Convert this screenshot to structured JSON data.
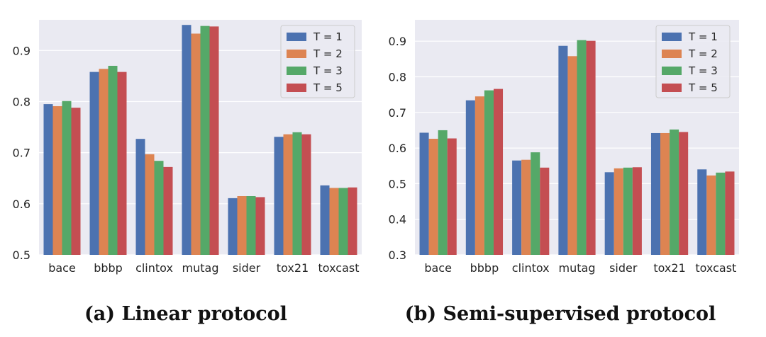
{
  "colors": {
    "background": "#eaeaf2",
    "grid": "#ffffff",
    "series": [
      "#4c72b0",
      "#dd8452",
      "#55a868",
      "#c44e52"
    ]
  },
  "chart_data": [
    {
      "type": "bar",
      "caption": "(a) Linear protocol",
      "categories": [
        "bace",
        "bbbp",
        "clintox",
        "mutag",
        "sider",
        "tox21",
        "toxcast"
      ],
      "ylim": [
        0.5,
        0.96
      ],
      "yticks": [
        "0.5",
        "0.6",
        "0.7",
        "0.8",
        "0.9"
      ],
      "grid": true,
      "legend_position": "top-right",
      "series": [
        {
          "name": "T = 1",
          "values": [
            0.795,
            0.858,
            0.727,
            0.95,
            0.611,
            0.731,
            0.636
          ]
        },
        {
          "name": "T = 2",
          "values": [
            0.791,
            0.864,
            0.697,
            0.933,
            0.615,
            0.736,
            0.631
          ]
        },
        {
          "name": "T = 3",
          "values": [
            0.801,
            0.87,
            0.684,
            0.948,
            0.615,
            0.74,
            0.631
          ]
        },
        {
          "name": "T = 5",
          "values": [
            0.788,
            0.858,
            0.672,
            0.947,
            0.613,
            0.736,
            0.632
          ]
        }
      ]
    },
    {
      "type": "bar",
      "caption": "(b) Semi-supervised protocol",
      "categories": [
        "bace",
        "bbbp",
        "clintox",
        "mutag",
        "sider",
        "tox21",
        "toxcast"
      ],
      "ylim": [
        0.3,
        0.96
      ],
      "yticks": [
        "0.3",
        "0.4",
        "0.5",
        "0.6",
        "0.7",
        "0.8",
        "0.9"
      ],
      "grid": true,
      "legend_position": "top-right",
      "series": [
        {
          "name": "T = 1",
          "values": [
            0.643,
            0.734,
            0.565,
            0.887,
            0.532,
            0.642,
            0.54
          ]
        },
        {
          "name": "T = 2",
          "values": [
            0.626,
            0.745,
            0.567,
            0.858,
            0.543,
            0.642,
            0.523
          ]
        },
        {
          "name": "T = 3",
          "values": [
            0.65,
            0.762,
            0.588,
            0.903,
            0.545,
            0.652,
            0.531
          ]
        },
        {
          "name": "T = 5",
          "values": [
            0.627,
            0.766,
            0.545,
            0.901,
            0.546,
            0.645,
            0.534
          ]
        }
      ]
    }
  ]
}
